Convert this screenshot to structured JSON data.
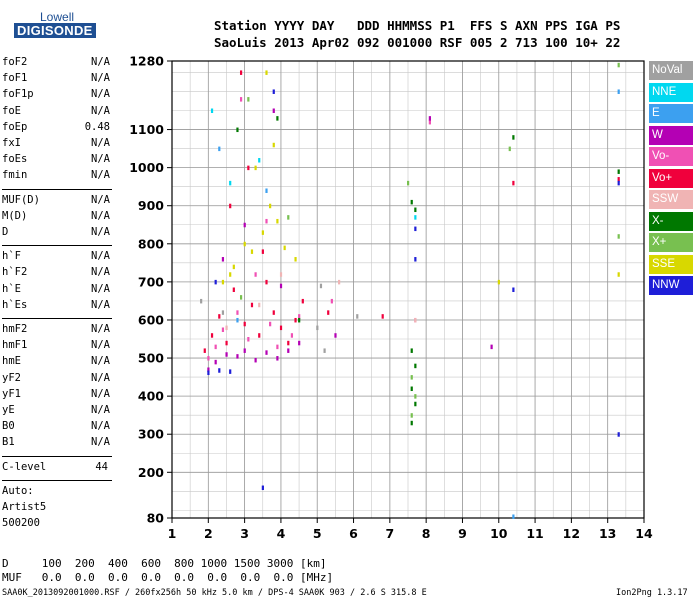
{
  "logo": {
    "top": "Lowell",
    "bottom": "DIGISONDE"
  },
  "header": {
    "line1": "Station YYYY DAY   DDD HHMMSS P1  FFS S AXN PPS IGA PS",
    "line2": "SaoLuis 2013 Apr02 092 001000 RSF 005 2 713 100 10+ 22"
  },
  "params": {
    "group1": [
      {
        "name": "foF2",
        "value": "N/A"
      },
      {
        "name": "foF1",
        "value": "N/A"
      },
      {
        "name": "foF1p",
        "value": "N/A"
      },
      {
        "name": "foE",
        "value": "N/A"
      },
      {
        "name": "foEp",
        "value": "0.48"
      },
      {
        "name": "fxI",
        "value": "N/A"
      },
      {
        "name": "foEs",
        "value": "N/A"
      },
      {
        "name": "fmin",
        "value": "N/A"
      }
    ],
    "group2": [
      {
        "name": "MUF(D)",
        "value": "N/A"
      },
      {
        "name": "M(D)",
        "value": "N/A"
      },
      {
        "name": "D",
        "value": "N/A"
      }
    ],
    "group3": [
      {
        "name": "h`F",
        "value": "N/A"
      },
      {
        "name": "h`F2",
        "value": "N/A"
      },
      {
        "name": "h`E",
        "value": "N/A"
      },
      {
        "name": "h`Es",
        "value": "N/A"
      }
    ],
    "group4": [
      {
        "name": "hmF2",
        "value": "N/A"
      },
      {
        "name": "hmF1",
        "value": "N/A"
      },
      {
        "name": "hmE",
        "value": "N/A"
      },
      {
        "name": "yF2",
        "value": "N/A"
      },
      {
        "name": "yF1",
        "value": "N/A"
      },
      {
        "name": "yE",
        "value": "N/A"
      },
      {
        "name": "B0",
        "value": "N/A"
      },
      {
        "name": "B1",
        "value": "N/A"
      }
    ],
    "clevel": {
      "name": "C-level",
      "value": "44"
    },
    "auto": [
      "Auto:",
      "Artist5",
      "500200"
    ]
  },
  "bottom": {
    "d_row": "D     100  200  400  600  800 1000 1500 3000 [km]",
    "muf_row": "MUF   0.0  0.0  0.0  0.0  0.0  0.0  0.0  0.0 [MHz]",
    "footer_left": "SAA0K_2013092001000.RSF / 260fx256h 50 kHz 5.0 km / DPS-4 SAA0K 903 / 2.6 S 315.8 E",
    "footer_right": "Ion2Png 1.3.17"
  },
  "legend": [
    {
      "label": "NoVal",
      "color": "#a0a0a0"
    },
    {
      "label": "NNE",
      "color": "#00d8f0"
    },
    {
      "label": "E",
      "color": "#3ca0f0"
    },
    {
      "label": "W",
      "color": "#b400b4"
    },
    {
      "label": "Vo-",
      "color": "#f050b4"
    },
    {
      "label": "Vo+",
      "color": "#f0003c"
    },
    {
      "label": "SSW",
      "color": "#f0b4b4"
    },
    {
      "label": "X-",
      "color": "#007800"
    },
    {
      "label": "X+",
      "color": "#78c050"
    },
    {
      "label": "SSE",
      "color": "#d8d800"
    },
    {
      "label": "NNW",
      "color": "#1e1ed8"
    }
  ],
  "chart_data": {
    "type": "scatter",
    "title": "",
    "xlabel": "",
    "ylabel": "",
    "xlim": [
      1,
      14
    ],
    "ylim": [
      80,
      1280
    ],
    "x_ticks": [
      1,
      2,
      3,
      4,
      5,
      6,
      7,
      8,
      9,
      10,
      11,
      12,
      13,
      14
    ],
    "y_ticks": [
      80,
      200,
      300,
      400,
      500,
      600,
      700,
      800,
      900,
      1000,
      1100,
      1280
    ],
    "y_tick_labels": [
      "80",
      "200",
      "300",
      "400",
      "500",
      "600",
      "700",
      "800",
      "900",
      "1000",
      "1100",
      "1280"
    ],
    "grid": true,
    "series": [
      {
        "name": "Vo+",
        "color": "#f0003c",
        "points": [
          [
            1.9,
            520
          ],
          [
            2.1,
            560
          ],
          [
            2.3,
            610
          ],
          [
            2.5,
            540
          ],
          [
            2.7,
            680
          ],
          [
            2.9,
            1250
          ],
          [
            3.0,
            590
          ],
          [
            3.2,
            640
          ],
          [
            3.4,
            560
          ],
          [
            3.6,
            700
          ],
          [
            3.8,
            620
          ],
          [
            4.0,
            580
          ],
          [
            4.2,
            540
          ],
          [
            4.4,
            600
          ],
          [
            4.6,
            650
          ],
          [
            2.6,
            900
          ],
          [
            3.1,
            1000
          ],
          [
            3.5,
            780
          ],
          [
            10.4,
            960
          ],
          [
            13.3,
            970
          ],
          [
            5.3,
            620
          ],
          [
            6.8,
            610
          ]
        ]
      },
      {
        "name": "Vo-",
        "color": "#f050b4",
        "points": [
          [
            2.0,
            500
          ],
          [
            2.2,
            530
          ],
          [
            2.4,
            575
          ],
          [
            2.8,
            620
          ],
          [
            3.1,
            550
          ],
          [
            3.3,
            720
          ],
          [
            3.7,
            590
          ],
          [
            3.9,
            530
          ],
          [
            4.3,
            560
          ],
          [
            4.5,
            610
          ],
          [
            2.9,
            1180
          ],
          [
            3.6,
            860
          ],
          [
            7.7,
            600
          ],
          [
            8.1,
            1120
          ],
          [
            5.4,
            650
          ]
        ]
      },
      {
        "name": "W",
        "color": "#b400b4",
        "points": [
          [
            2.0,
            470
          ],
          [
            2.2,
            490
          ],
          [
            2.5,
            510
          ],
          [
            2.8,
            505
          ],
          [
            3.0,
            520
          ],
          [
            3.3,
            495
          ],
          [
            3.6,
            515
          ],
          [
            3.9,
            500
          ],
          [
            4.2,
            520
          ],
          [
            4.5,
            540
          ],
          [
            2.4,
            760
          ],
          [
            3.0,
            850
          ],
          [
            3.8,
            1150
          ],
          [
            8.1,
            1130
          ],
          [
            9.8,
            530
          ],
          [
            4.0,
            690
          ],
          [
            5.5,
            560
          ]
        ]
      },
      {
        "name": "SSE",
        "color": "#d8d800",
        "points": [
          [
            2.7,
            740
          ],
          [
            3.0,
            800
          ],
          [
            3.2,
            780
          ],
          [
            3.5,
            830
          ],
          [
            3.7,
            900
          ],
          [
            3.9,
            860
          ],
          [
            4.1,
            790
          ],
          [
            3.3,
            1000
          ],
          [
            3.8,
            1060
          ],
          [
            2.6,
            720
          ],
          [
            2.4,
            700
          ],
          [
            3.6,
            1250
          ],
          [
            10.0,
            700
          ],
          [
            13.3,
            720
          ],
          [
            4.4,
            760
          ]
        ]
      },
      {
        "name": "X-",
        "color": "#007800",
        "points": [
          [
            7.6,
            910
          ],
          [
            7.7,
            890
          ],
          [
            7.6,
            520
          ],
          [
            7.7,
            480
          ],
          [
            7.6,
            420
          ],
          [
            7.7,
            380
          ],
          [
            7.6,
            330
          ],
          [
            10.4,
            1080
          ],
          [
            13.3,
            990
          ],
          [
            2.8,
            1100
          ],
          [
            3.9,
            1130
          ],
          [
            4.5,
            600
          ]
        ]
      },
      {
        "name": "X+",
        "color": "#78c050",
        "points": [
          [
            7.6,
            450
          ],
          [
            7.7,
            400
          ],
          [
            7.6,
            350
          ],
          [
            7.5,
            960
          ],
          [
            10.3,
            1050
          ],
          [
            13.3,
            1270
          ],
          [
            13.3,
            820
          ],
          [
            3.1,
            1180
          ],
          [
            4.2,
            870
          ],
          [
            2.9,
            660
          ]
        ]
      },
      {
        "name": "NNW",
        "color": "#1e1ed8",
        "points": [
          [
            2.0,
            462
          ],
          [
            2.3,
            468
          ],
          [
            2.6,
            465
          ],
          [
            3.5,
            160
          ],
          [
            7.7,
            840
          ],
          [
            7.7,
            760
          ],
          [
            10.4,
            680
          ],
          [
            13.3,
            300
          ],
          [
            13.3,
            960
          ],
          [
            3.8,
            1200
          ],
          [
            2.2,
            700
          ]
        ]
      },
      {
        "name": "NNE",
        "color": "#00d8f0",
        "points": [
          [
            2.1,
            1150
          ],
          [
            3.4,
            1020
          ],
          [
            7.7,
            870
          ],
          [
            2.6,
            960
          ]
        ]
      },
      {
        "name": "E",
        "color": "#3ca0f0",
        "points": [
          [
            2.3,
            1050
          ],
          [
            3.6,
            940
          ],
          [
            13.3,
            1200
          ],
          [
            10.4,
            84
          ],
          [
            2.8,
            600
          ]
        ]
      },
      {
        "name": "SSW",
        "color": "#f0b4b4",
        "points": [
          [
            2.5,
            580
          ],
          [
            3.4,
            640
          ],
          [
            4.0,
            720
          ],
          [
            5.6,
            700
          ],
          [
            7.7,
            600
          ]
        ]
      },
      {
        "name": "NoVal",
        "color": "#a0a0a0",
        "points": [
          [
            1.8,
            650
          ],
          [
            2.4,
            620
          ],
          [
            5.1,
            690
          ],
          [
            5.2,
            520
          ],
          [
            5.0,
            580
          ],
          [
            6.1,
            610
          ]
        ]
      }
    ]
  }
}
